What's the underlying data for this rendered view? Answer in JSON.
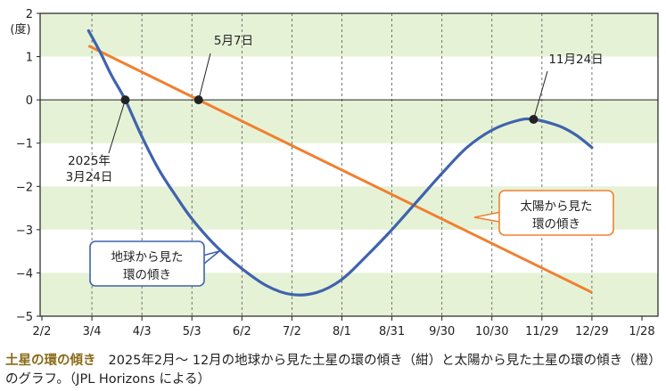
{
  "chart_data": {
    "type": "line",
    "x_ticks": [
      "2/2",
      "3/4",
      "4/3",
      "5/3",
      "6/2",
      "7/2",
      "8/1",
      "8/31",
      "9/30",
      "10/30",
      "11/29",
      "12/29",
      "1/28"
    ],
    "y_ticks": [
      "2",
      "1",
      "0",
      "−1",
      "−2",
      "−3",
      "−4",
      "−5"
    ],
    "ylim": [
      -5,
      2
    ],
    "y_unit": "(度)",
    "grid": "alternating horizontal bands, dashed vertical lines",
    "series": [
      {
        "name": "地球から見た環の傾き",
        "color": "#3f63ad",
        "points": [
          [
            "2025-03-02",
            1.6
          ],
          [
            "2025-03-09",
            1.1
          ],
          [
            "2025-03-16",
            0.55
          ],
          [
            "2025-03-24",
            0.0
          ],
          [
            "2025-04-03",
            -0.85
          ],
          [
            "2025-04-13",
            -1.6
          ],
          [
            "2025-04-23",
            -2.2
          ],
          [
            "2025-05-03",
            -2.75
          ],
          [
            "2025-05-18",
            -3.4
          ],
          [
            "2025-06-02",
            -3.9
          ],
          [
            "2025-06-17",
            -4.3
          ],
          [
            "2025-07-02",
            -4.5
          ],
          [
            "2025-07-17",
            -4.45
          ],
          [
            "2025-08-01",
            -4.15
          ],
          [
            "2025-08-16",
            -3.6
          ],
          [
            "2025-08-31",
            -3.0
          ],
          [
            "2025-09-15",
            -2.35
          ],
          [
            "2025-09-30",
            -1.7
          ],
          [
            "2025-10-15",
            -1.1
          ],
          [
            "2025-10-30",
            -0.7
          ],
          [
            "2025-11-14",
            -0.48
          ],
          [
            "2025-11-24",
            -0.45
          ],
          [
            "2025-12-09",
            -0.6
          ],
          [
            "2025-12-19",
            -0.8
          ],
          [
            "2025-12-29",
            -1.1
          ]
        ]
      },
      {
        "name": "太陽から見た環の傾き",
        "color": "#f08030",
        "points": [
          [
            "2025-03-02",
            1.25
          ],
          [
            "2025-05-07",
            0.0
          ],
          [
            "2025-12-29",
            -4.45
          ]
        ]
      }
    ],
    "markers": [
      {
        "date": "2025-03-24",
        "value": 0,
        "label": [
          "2025年",
          "3月24日"
        ]
      },
      {
        "date": "2025-05-07",
        "value": 0,
        "label": [
          "5月7日"
        ]
      },
      {
        "date": "2025-11-24",
        "value": -0.45,
        "label": [
          "11月24日"
        ]
      }
    ],
    "callouts": {
      "earth": [
        "地球から見た",
        "環の傾き"
      ],
      "sun": [
        "太陽から見た",
        "環の傾き"
      ]
    }
  },
  "caption": {
    "title": "土星の環の傾き",
    "text": "2025年2月～ 12月の地球から見た土星の環の傾き（紺）と太陽から見た土星の環の傾き（橙）のグラフ。（JPL Horizons による）"
  },
  "colors": {
    "band": "#e6f2d6",
    "earth": "#3f63ad",
    "sun": "#f08030"
  }
}
